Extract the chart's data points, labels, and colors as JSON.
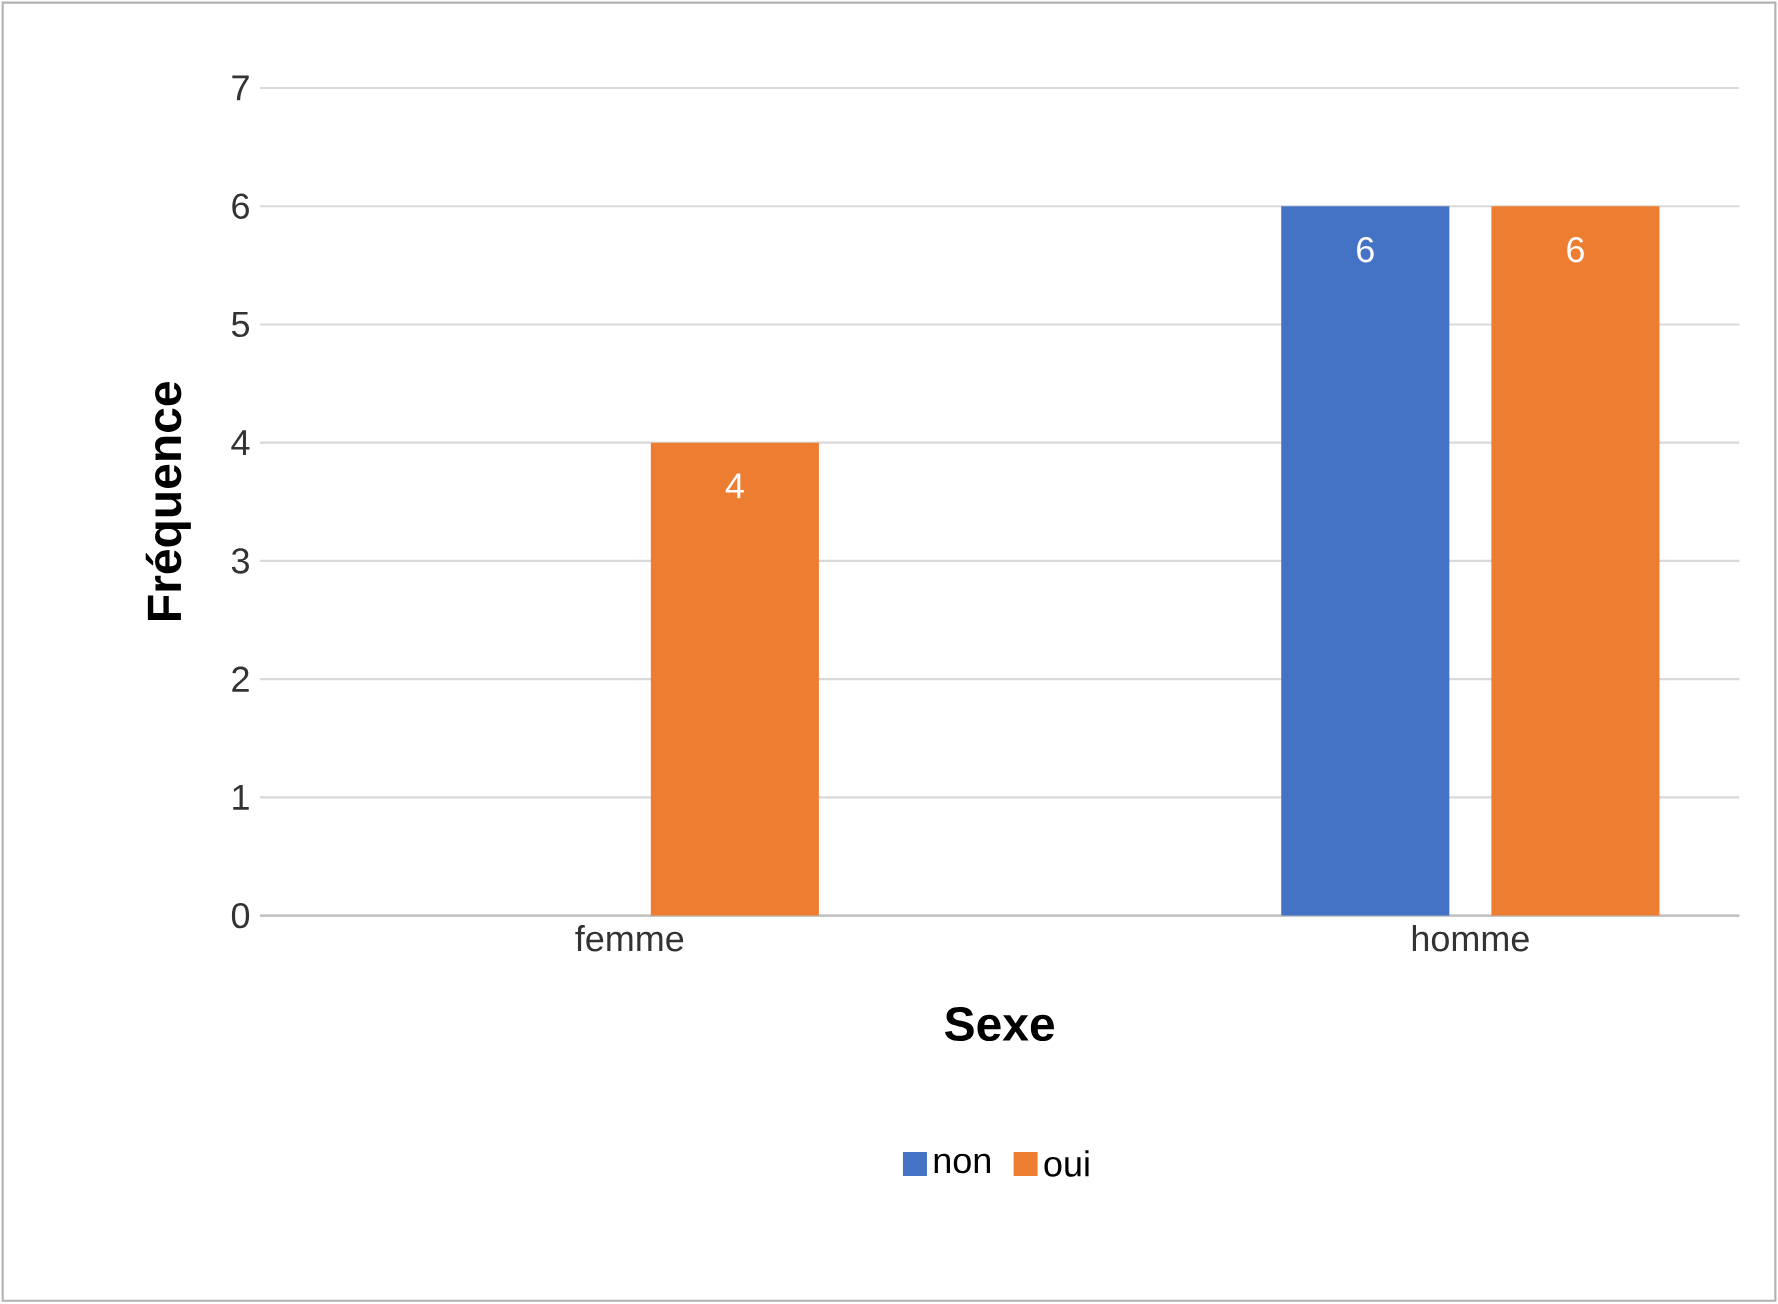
{
  "chart_data": {
    "type": "bar",
    "xlabel": "Sexe",
    "ylabel": "Fréquence",
    "categories": [
      "femme",
      "homme"
    ],
    "series": [
      {
        "name": "non",
        "color": "#4472c4",
        "values": [
          null,
          6
        ]
      },
      {
        "name": "oui",
        "color": "#ed7d31",
        "values": [
          4,
          6
        ]
      }
    ],
    "ylim": [
      0,
      7
    ],
    "yticks": [
      0,
      1,
      2,
      3,
      4,
      5,
      6,
      7
    ],
    "grid": "y",
    "legend": "bottom",
    "data_labels": true
  }
}
